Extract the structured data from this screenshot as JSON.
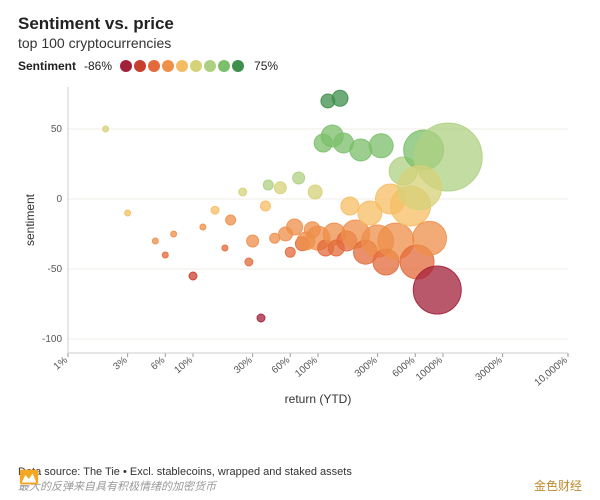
{
  "header": {
    "title": "Sentiment vs. price",
    "subtitle": "top 100 cryptocurrencies"
  },
  "legend": {
    "label": "Sentiment",
    "min": "-86%",
    "max": "75%",
    "colors": [
      "#a3203a",
      "#c7402e",
      "#e36a3a",
      "#ee8f4a",
      "#f5bd63",
      "#d6d27a",
      "#aed081",
      "#7bbf6a",
      "#3f8f4c"
    ]
  },
  "chart": {
    "type": "bubble",
    "x_scale": "log",
    "xlabel": "return (YTD)",
    "ylabel": "sentiment",
    "xlim": [
      1,
      10000
    ],
    "ylim": [
      -110,
      80
    ],
    "yticks": [
      -100,
      -50,
      0,
      50
    ],
    "xticks": [
      {
        "v": 1,
        "l": "1%"
      },
      {
        "v": 3,
        "l": "3%"
      },
      {
        "v": 6,
        "l": "6%"
      },
      {
        "v": 10,
        "l": "10%"
      },
      {
        "v": 30,
        "l": "30%"
      },
      {
        "v": 60,
        "l": "60%"
      },
      {
        "v": 100,
        "l": "100%"
      },
      {
        "v": 300,
        "l": "300%"
      },
      {
        "v": 600,
        "l": "600%"
      },
      {
        "v": 1000,
        "l": "1000%"
      },
      {
        "v": 3000,
        "l": "3000%"
      },
      {
        "v": 10000,
        "l": "10,000%"
      }
    ],
    "grid_color": "#f0ece7",
    "background": "#ffffff",
    "label_fontsize": 12,
    "tick_fontsize": 10,
    "bubbles": [
      {
        "x": 2,
        "y": 50,
        "r": 3,
        "c": "#d6d27a"
      },
      {
        "x": 3,
        "y": -10,
        "r": 3,
        "c": "#f5bd63"
      },
      {
        "x": 5,
        "y": -30,
        "r": 3,
        "c": "#ee8f4a"
      },
      {
        "x": 6,
        "y": -40,
        "r": 3,
        "c": "#e36a3a"
      },
      {
        "x": 7,
        "y": -25,
        "r": 3,
        "c": "#ee8f4a"
      },
      {
        "x": 10,
        "y": -55,
        "r": 4,
        "c": "#c7402e"
      },
      {
        "x": 12,
        "y": -20,
        "r": 3,
        "c": "#ee8f4a"
      },
      {
        "x": 15,
        "y": -8,
        "r": 4,
        "c": "#f5bd63"
      },
      {
        "x": 18,
        "y": -35,
        "r": 3,
        "c": "#e36a3a"
      },
      {
        "x": 20,
        "y": -15,
        "r": 5,
        "c": "#ee8f4a"
      },
      {
        "x": 25,
        "y": 5,
        "r": 4,
        "c": "#d6d27a"
      },
      {
        "x": 28,
        "y": -45,
        "r": 4,
        "c": "#e36a3a"
      },
      {
        "x": 30,
        "y": -30,
        "r": 6,
        "c": "#ee8f4a"
      },
      {
        "x": 35,
        "y": -85,
        "r": 4,
        "c": "#a3203a"
      },
      {
        "x": 38,
        "y": -5,
        "r": 5,
        "c": "#f5bd63"
      },
      {
        "x": 40,
        "y": 10,
        "r": 5,
        "c": "#aed081"
      },
      {
        "x": 45,
        "y": -28,
        "r": 5,
        "c": "#ee8f4a"
      },
      {
        "x": 50,
        "y": 8,
        "r": 6,
        "c": "#d6d27a"
      },
      {
        "x": 55,
        "y": -25,
        "r": 7,
        "c": "#ee8f4a"
      },
      {
        "x": 60,
        "y": -38,
        "r": 5,
        "c": "#e36a3a"
      },
      {
        "x": 65,
        "y": -20,
        "r": 8,
        "c": "#ee8f4a"
      },
      {
        "x": 70,
        "y": 15,
        "r": 6,
        "c": "#aed081"
      },
      {
        "x": 75,
        "y": -32,
        "r": 7,
        "c": "#e36a3a"
      },
      {
        "x": 80,
        "y": -30,
        "r": 9,
        "c": "#ee8f4a"
      },
      {
        "x": 90,
        "y": -22,
        "r": 8,
        "c": "#ee8f4a"
      },
      {
        "x": 95,
        "y": 5,
        "r": 7,
        "c": "#d6d27a"
      },
      {
        "x": 100,
        "y": -28,
        "r": 12,
        "c": "#ee8f4a"
      },
      {
        "x": 110,
        "y": 40,
        "r": 9,
        "c": "#7bbf6a"
      },
      {
        "x": 115,
        "y": -35,
        "r": 8,
        "c": "#e36a3a"
      },
      {
        "x": 120,
        "y": 70,
        "r": 7,
        "c": "#3f8f4c"
      },
      {
        "x": 130,
        "y": 45,
        "r": 11,
        "c": "#7bbf6a"
      },
      {
        "x": 135,
        "y": -25,
        "r": 11,
        "c": "#ee8f4a"
      },
      {
        "x": 140,
        "y": -35,
        "r": 8,
        "c": "#e36a3a"
      },
      {
        "x": 150,
        "y": 72,
        "r": 8,
        "c": "#3f8f4c"
      },
      {
        "x": 160,
        "y": 40,
        "r": 10,
        "c": "#7bbf6a"
      },
      {
        "x": 170,
        "y": -30,
        "r": 10,
        "c": "#e36a3a"
      },
      {
        "x": 180,
        "y": -5,
        "r": 9,
        "c": "#f5bd63"
      },
      {
        "x": 200,
        "y": -25,
        "r": 14,
        "c": "#ee8f4a"
      },
      {
        "x": 220,
        "y": 35,
        "r": 11,
        "c": "#7bbf6a"
      },
      {
        "x": 240,
        "y": -38,
        "r": 12,
        "c": "#e36a3a"
      },
      {
        "x": 260,
        "y": -10,
        "r": 12,
        "c": "#f5bd63"
      },
      {
        "x": 300,
        "y": -30,
        "r": 16,
        "c": "#ee8f4a"
      },
      {
        "x": 320,
        "y": 38,
        "r": 12,
        "c": "#7bbf6a"
      },
      {
        "x": 350,
        "y": -45,
        "r": 13,
        "c": "#e36a3a"
      },
      {
        "x": 380,
        "y": 0,
        "r": 15,
        "c": "#f5bd63"
      },
      {
        "x": 420,
        "y": -30,
        "r": 18,
        "c": "#ee8f4a"
      },
      {
        "x": 480,
        "y": 20,
        "r": 14,
        "c": "#aed081"
      },
      {
        "x": 550,
        "y": -5,
        "r": 20,
        "c": "#f5bd63"
      },
      {
        "x": 620,
        "y": -45,
        "r": 17,
        "c": "#e36a3a"
      },
      {
        "x": 700,
        "y": 35,
        "r": 20,
        "c": "#7bbf6a"
      },
      {
        "x": 780,
        "y": -28,
        "r": 17,
        "c": "#ee8f4a"
      },
      {
        "x": 900,
        "y": -65,
        "r": 24,
        "c": "#a3203a"
      },
      {
        "x": 1100,
        "y": 30,
        "r": 34,
        "c": "#aed081"
      },
      {
        "x": 650,
        "y": 8,
        "r": 22,
        "c": "#d6d27a"
      }
    ]
  },
  "footer": {
    "source": "Data source: The Tie • Excl. stablecoins, wrapped and staked assets",
    "caption": "最大的反弹来自具有积极情绪的加密货币"
  },
  "brand": {
    "text": "金色财经",
    "icon_bg": "#f5a623",
    "icon_fg": "#ffffff"
  }
}
